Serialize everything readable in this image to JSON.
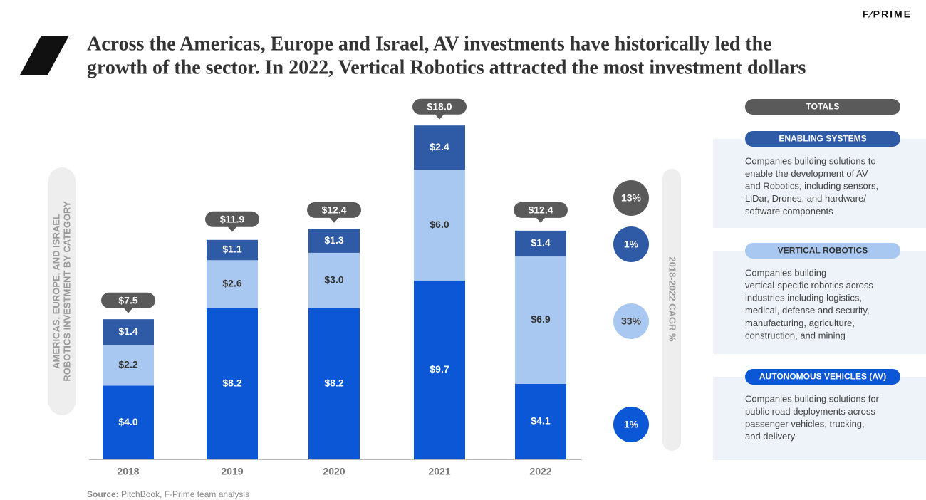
{
  "logo": "F⁄PRIME",
  "chart_data": {
    "type": "stacked-bar",
    "title": [
      "Across the Americas, Europe and Israel, AV investments have historically led the",
      "growth of the sector.  In 2022, Vertical Robotics attracted the most investment dollars"
    ],
    "y_label": [
      "AMERICAS, EUROPE, AND ISRAEL",
      "ROBOTICS INVESTMENT BY CATEGORY"
    ],
    "categories": [
      "2018",
      "2019",
      "2020",
      "2021",
      "2022"
    ],
    "series": [
      {
        "name": "ENABLING SYSTEMS",
        "color": "#2e5aa6",
        "values": [
          1.4,
          1.1,
          1.3,
          2.4,
          1.4
        ],
        "value_labels": [
          "$1.4",
          "$1.1",
          "$1.3",
          "$2.4",
          "$1.4"
        ],
        "cagr": 1,
        "cagr_label": "1%",
        "description": [
          "Companies building solutions to",
          "enable the development of AV",
          "and Robotics, including sensors,",
          "LiDar, Drones, and hardware/",
          "software components"
        ]
      },
      {
        "name": "VERTICAL ROBOTICS",
        "color": "#a9c8f1",
        "values": [
          2.2,
          2.6,
          3.0,
          6.0,
          6.9
        ],
        "value_labels": [
          "$2.2",
          "$2.6",
          "$3.0",
          "$6.0",
          "$6.9"
        ],
        "cagr": 33,
        "cagr_label": "33%",
        "description": [
          "Companies building",
          "vertical-specific robotics across",
          "industries including logistics,",
          "medical, defense and security,",
          "manufacturing, agriculture,",
          "construction, and mining"
        ]
      },
      {
        "name": "AUTONOMOUS VEHICLES (AV)",
        "color": "#0b57d6",
        "values": [
          4.0,
          8.2,
          8.2,
          9.7,
          4.1
        ],
        "value_labels": [
          "$4.0",
          "$8.2",
          "$8.2",
          "$9.7",
          "$4.1"
        ],
        "cagr": 1,
        "cagr_label": "1%",
        "description": [
          "Companies building solutions for",
          "public road deployments across",
          "passenger vehicles, trucking,",
          "and delivery"
        ]
      }
    ],
    "totals": {
      "name": "TOTALS",
      "color": "#5a5a5a",
      "values": [
        7.5,
        11.9,
        12.4,
        18.0,
        12.4
      ],
      "value_labels": [
        "$7.5",
        "$11.9",
        "$12.4",
        "$18.0",
        "$12.4"
      ],
      "cagr": 13,
      "cagr_label": "13%"
    },
    "cagr_title": "2018-2022 CAGR %",
    "source": {
      "label": "Source:",
      "text": " PitchBook, F-Prime team analysis"
    }
  }
}
